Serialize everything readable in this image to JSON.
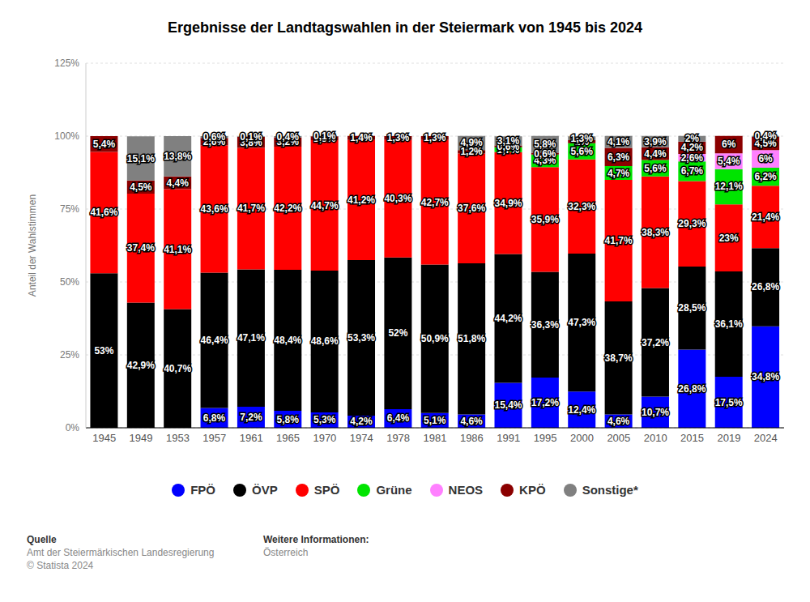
{
  "chart_data": {
    "type": "bar",
    "title": "Ergebnisse der Landtagswahlen in der Steiermark von 1945 bis 2024",
    "y_label": "Anteil der Wahlstimmen",
    "annotations": [
      "Quelle",
      "Amt der Steiermärkischen Landesregierung",
      "© Statista 2024",
      "Weitere Informationen:",
      "Österreich"
    ],
    "categories": [
      "1945",
      "1949",
      "1953",
      "1957",
      "1961",
      "1965",
      "1970",
      "1974",
      "1978",
      "1981",
      "1986",
      "1991",
      "1995",
      "2000",
      "2005",
      "2010",
      "2015",
      "2019",
      "2024"
    ],
    "stacked": true,
    "data_labels": true,
    "grid": true,
    "legend": "bottom",
    "ylim": [
      0,
      125
    ],
    "yticks": [
      {
        "value": 0,
        "label": "0%"
      },
      {
        "value": 25,
        "label": "25%"
      },
      {
        "value": 50,
        "label": "50%"
      },
      {
        "value": 75,
        "label": "75%"
      },
      {
        "value": 100,
        "label": "100%"
      },
      {
        "value": 125,
        "label": "125%"
      }
    ],
    "series": [
      {
        "name": "FPÖ",
        "color": "#0000ff",
        "values": [
          null,
          null,
          null,
          6.8,
          7.2,
          5.8,
          5.3,
          4.2,
          6.4,
          5.1,
          4.6,
          15.4,
          17.2,
          12.4,
          4.6,
          10.7,
          26.8,
          17.5,
          34.8
        ],
        "value_labels": [
          null,
          null,
          null,
          "6,8%",
          "7,2%",
          "5,8%",
          "5,3%",
          "4,2%",
          "6,4%",
          "5,1%",
          "4,6%",
          "15,4%",
          "17,2%",
          "12,4%",
          "4,6%",
          "10,7%",
          "26,8%",
          "17,5%",
          "34,8%"
        ]
      },
      {
        "name": "ÖVP",
        "color": "#000000",
        "values": [
          53,
          42.9,
          40.7,
          46.4,
          47.1,
          48.4,
          48.6,
          53.3,
          52,
          50.9,
          51.8,
          44.2,
          36.3,
          47.3,
          38.7,
          37.2,
          28.5,
          36.1,
          26.8
        ],
        "value_labels": [
          "53%",
          "42,9%",
          "40,7%",
          "46,4%",
          "47,1%",
          "48,4%",
          "48,6%",
          "53,3%",
          "52%",
          "50,9%",
          "51,8%",
          "44,2%",
          "36,3%",
          "47,3%",
          "38,7%",
          "37,2%",
          "28,5%",
          "36,1%",
          "26,8%"
        ]
      },
      {
        "name": "SPÖ",
        "color": "#ff0000",
        "values": [
          41.6,
          37.4,
          41.1,
          43.6,
          41.7,
          42.2,
          44.7,
          41.2,
          40.3,
          42.7,
          37.6,
          34.9,
          35.9,
          32.3,
          41.7,
          38.3,
          29.3,
          23,
          21.4
        ],
        "value_labels": [
          "41,6%",
          "37,4%",
          "41,1%",
          "43,6%",
          "41,7%",
          "42,2%",
          "44,7%",
          "41,2%",
          "40,3%",
          "42,7%",
          "37,6%",
          "34,9%",
          "35,9%",
          "32,3%",
          "41,7%",
          "38,3%",
          "29,3%",
          "23%",
          "21,4%"
        ]
      },
      {
        "name": "Grüne",
        "color": "#00e400",
        "values": [
          null,
          null,
          null,
          null,
          null,
          null,
          null,
          null,
          null,
          null,
          null,
          1.7,
          4.3,
          5.6,
          4.7,
          5.6,
          6.7,
          12.1,
          6.2
        ],
        "value_labels": [
          null,
          null,
          null,
          null,
          null,
          null,
          null,
          null,
          null,
          null,
          null,
          "1,7%",
          "4,3%",
          "5,6%",
          "4,7%",
          "5,6%",
          "6,7%",
          "12,1%",
          "6,2%"
        ]
      },
      {
        "name": "NEOS",
        "color": "#ff80ff",
        "values": [
          null,
          null,
          null,
          null,
          null,
          null,
          null,
          null,
          null,
          null,
          null,
          null,
          null,
          null,
          null,
          null,
          2.6,
          5.4,
          6
        ],
        "value_labels": [
          null,
          null,
          null,
          null,
          null,
          null,
          null,
          null,
          null,
          null,
          null,
          null,
          null,
          null,
          null,
          null,
          "2,6%",
          "5,4%",
          "6%"
        ]
      },
      {
        "name": "KPÖ",
        "color": "#8b0000",
        "values": [
          5.4,
          4.5,
          4.4,
          2.6,
          3.8,
          3.2,
          1.3,
          1.4,
          1.3,
          1.3,
          1.2,
          0.6,
          0.6,
          1,
          6.3,
          4.4,
          4.2,
          6,
          4.5
        ],
        "value_labels": [
          "5,4%",
          "4,5%",
          "4,4%",
          "2,6%",
          "3,8%",
          "3,2%",
          "1,3%",
          "1,4%",
          "1,3%",
          "1,3%",
          "1,2%",
          "0,6%",
          "0,6%",
          "1%",
          "6,3%",
          "4,4%",
          "4,2%",
          "6%",
          "4,5%"
        ]
      },
      {
        "name": "Sonstige*",
        "color": "#808080",
        "values": [
          null,
          15.1,
          13.8,
          0.6,
          0.1,
          0.4,
          0.1,
          null,
          null,
          null,
          4.9,
          3.1,
          5.8,
          1.3,
          4.1,
          3.9,
          2,
          null,
          0.4
        ],
        "value_labels": [
          null,
          "15,1%",
          "13,8%",
          "0,6%",
          "0,1%",
          "0,4%",
          "0,1%",
          null,
          null,
          null,
          "4,9%",
          "3,1%",
          "5,8%",
          "1,3%",
          "4,1%",
          "3,9%",
          "2%",
          null,
          "0,4%"
        ]
      }
    ]
  }
}
